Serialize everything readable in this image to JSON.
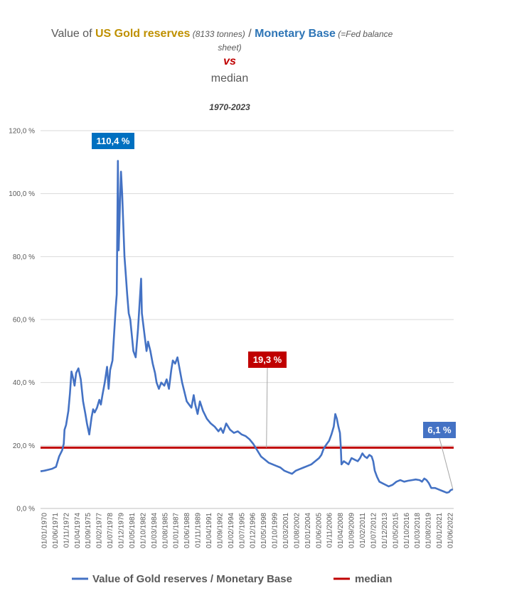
{
  "title": {
    "prefix": "Value of ",
    "gold_part": "US Gold reserves",
    "gold_note": " (8133 tonnes)",
    "slash": " / ",
    "base_part": "Monetary Base",
    "base_note_1": " (=Fed balance",
    "base_note_2": "sheet)",
    "vs": "vs",
    "median_word": "median"
  },
  "subtitle": "1970-2023",
  "colors": {
    "series": "#4472C4",
    "median": "#C00000",
    "gold": "#BF9000",
    "blue": "#2E75B6",
    "callout_peak": "#0070C0",
    "callout_last": "#4472C4",
    "grid": "#D9D9D9"
  },
  "chart_data": {
    "type": "line",
    "title": "Value of US Gold reserves (8133 tonnes) / Monetary Base (=Fed balance sheet) vs median",
    "subtitle": "1970-2023",
    "xlabel": "",
    "ylabel": "",
    "ylim": [
      0,
      120
    ],
    "yticks": [
      "0,0 %",
      "20,0 %",
      "40,0 %",
      "60,0 %",
      "80,0 %",
      "100,0 %",
      "120,0 %"
    ],
    "xticks": [
      "01/01/1970",
      "01/06/1971",
      "01/11/1972",
      "01/04/1974",
      "01/09/1975",
      "01/02/1977",
      "01/07/1978",
      "01/12/1979",
      "01/05/1981",
      "01/10/1982",
      "01/03/1984",
      "01/08/1985",
      "01/01/1987",
      "01/06/1988",
      "01/11/1989",
      "01/04/1991",
      "01/09/1992",
      "01/02/1994",
      "01/07/1995",
      "01/12/1996",
      "01/05/1998",
      "01/10/1999",
      "01/03/2001",
      "01/08/2002",
      "01/01/2004",
      "01/06/2005",
      "01/11/2006",
      "01/04/2008",
      "01/09/2009",
      "01/02/2011",
      "01/07/2012",
      "01/12/2013",
      "01/05/2015",
      "01/10/2016",
      "01/03/2018",
      "01/08/2019",
      "01/01/2021",
      "01/06/2022"
    ],
    "grid": true,
    "legend_position": "bottom",
    "series": [
      {
        "name": "Value of Gold reserves / Monetary Base",
        "x": [
          1970.0,
          1970.5,
          1971.0,
          1971.5,
          1972.0,
          1972.4,
          1972.8,
          1973.0,
          1973.1,
          1973.3,
          1973.6,
          1973.8,
          1974.0,
          1974.2,
          1974.4,
          1974.6,
          1974.9,
          1975.2,
          1975.5,
          1975.8,
          1976.0,
          1976.3,
          1976.6,
          1976.8,
          1977.0,
          1977.3,
          1977.6,
          1977.8,
          1978.0,
          1978.3,
          1978.6,
          1978.8,
          1979.0,
          1979.3,
          1979.5,
          1979.7,
          1979.85,
          1980.0,
          1980.1,
          1980.25,
          1980.4,
          1980.55,
          1980.7,
          1980.85,
          1981.0,
          1981.2,
          1981.4,
          1981.6,
          1981.8,
          1982.0,
          1982.3,
          1982.6,
          1982.8,
          1983.0,
          1983.1,
          1983.3,
          1983.5,
          1983.7,
          1983.9,
          1984.2,
          1984.5,
          1984.8,
          1985.0,
          1985.3,
          1985.6,
          1986.0,
          1986.3,
          1986.6,
          1986.9,
          1987.1,
          1987.4,
          1987.7,
          1988.0,
          1988.3,
          1988.6,
          1988.9,
          1989.2,
          1989.5,
          1989.8,
          1990.0,
          1990.3,
          1990.6,
          1991.0,
          1991.5,
          1992.0,
          1992.5,
          1993.0,
          1993.3,
          1993.6,
          1994.0,
          1994.5,
          1995.0,
          1995.5,
          1996.0,
          1996.5,
          1997.0,
          1997.5,
          1998.0,
          1998.5,
          1999.0,
          1999.5,
          2000.0,
          2000.5,
          2001.0,
          2001.5,
          2002.0,
          2002.5,
          2003.0,
          2003.5,
          2004.0,
          2004.5,
          2005.0,
          2005.5,
          2006.0,
          2006.3,
          2006.6,
          2007.0,
          2007.3,
          2007.6,
          2007.9,
          2008.1,
          2008.3,
          2008.5,
          2008.7,
          2008.8,
          2008.9,
          2009.2,
          2009.5,
          2009.8,
          2010.2,
          2010.6,
          2011.0,
          2011.3,
          2011.6,
          2011.9,
          2012.2,
          2012.5,
          2012.8,
          2013.0,
          2013.2,
          2013.5,
          2013.8,
          2014.2,
          2014.6,
          2015.0,
          2015.5,
          2016.0,
          2016.5,
          2017.0,
          2017.5,
          2018.0,
          2018.5,
          2019.0,
          2019.3,
          2019.6,
          2019.9,
          2020.2,
          2020.5,
          2021.0,
          2021.5,
          2022.0,
          2022.5,
          2022.8,
          2023.0,
          2023.3
        ],
        "values": [
          11.8,
          12.0,
          12.3,
          12.6,
          13.2,
          16.5,
          18.5,
          20.5,
          25.0,
          26.5,
          31.0,
          36.5,
          43.5,
          41.5,
          39.0,
          43.0,
          44.5,
          41.0,
          34.0,
          30.0,
          27.0,
          23.5,
          29.0,
          31.5,
          30.5,
          32.0,
          34.5,
          33.0,
          36.0,
          40.0,
          45.0,
          38.0,
          44.0,
          47.0,
          55.0,
          63.0,
          68.0,
          110.4,
          82.0,
          95.0,
          107.0,
          100.0,
          90.0,
          80.0,
          75.0,
          68.0,
          62.0,
          60.0,
          55.0,
          50.0,
          48.0,
          57.0,
          65.0,
          73.0,
          62.0,
          58.0,
          54.0,
          50.0,
          53.0,
          50.0,
          46.0,
          43.0,
          40.0,
          38.0,
          40.0,
          39.0,
          41.0,
          38.0,
          44.0,
          47.0,
          46.0,
          48.0,
          44.0,
          40.0,
          37.0,
          34.0,
          33.0,
          32.0,
          36.0,
          33.0,
          30.0,
          34.0,
          31.0,
          28.5,
          27.0,
          26.0,
          24.5,
          25.5,
          24.0,
          27.0,
          25.0,
          24.0,
          24.5,
          23.5,
          23.0,
          22.0,
          20.5,
          18.5,
          16.5,
          15.5,
          14.5,
          14.0,
          13.5,
          13.0,
          12.0,
          11.5,
          11.0,
          12.0,
          12.5,
          13.0,
          13.5,
          14.0,
          15.0,
          16.0,
          17.0,
          19.0,
          20.5,
          21.5,
          23.5,
          26.0,
          30.0,
          28.5,
          26.0,
          24.0,
          20.0,
          14.0,
          15.0,
          14.5,
          14.0,
          16.0,
          15.5,
          15.0,
          16.0,
          17.5,
          16.5,
          16.0,
          17.0,
          16.5,
          15.0,
          12.0,
          10.0,
          8.5,
          8.0,
          7.5,
          7.0,
          7.5,
          8.5,
          9.0,
          8.5,
          8.8,
          9.0,
          9.2,
          9.0,
          8.5,
          9.5,
          9.0,
          8.0,
          6.5,
          6.5,
          6.0,
          5.5,
          5.0,
          5.2,
          5.8,
          6.1
        ]
      },
      {
        "name": "median",
        "constant": 19.3
      }
    ],
    "annotations": [
      {
        "label": "110,4 %",
        "x": 1980.0,
        "y": 110.4
      },
      {
        "label": "19,3 %",
        "x": 1999.2,
        "y": 19.3
      },
      {
        "label": "6,1 %",
        "x": 2023.3,
        "y": 6.1
      }
    ]
  }
}
